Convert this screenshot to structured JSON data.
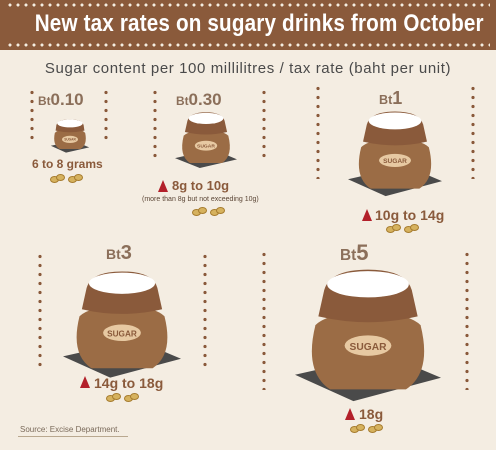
{
  "header": {
    "title": "New tax rates on sugary drinks from October"
  },
  "subtitle": "Sugar content per 100 millilitres / tax rate (baht per unit)",
  "colors": {
    "brown": "#8a5a3b",
    "sack": "#9b6c45",
    "sugar": "#ffffff",
    "warning": "#b3202a",
    "background": "#f4ede2"
  },
  "tiers": [
    {
      "currency": "Bt",
      "rate": "0.10",
      "range": "6 to 8 grams",
      "note": "",
      "bag_label": "SUGAR",
      "arrow_icon": ""
    },
    {
      "currency": "Bt",
      "rate": "0.30",
      "range": "8g to 10g",
      "note": "(more than 8g but not exceeding 10g)",
      "bag_label": "SUGAR",
      "arrow_icon": "up-triangle-icon"
    },
    {
      "currency": "Bt",
      "rate": "1",
      "range": "10g to 14g",
      "note": "",
      "bag_label": "SUGAR",
      "arrow_icon": "up-triangle-icon"
    },
    {
      "currency": "Bt",
      "rate": "3",
      "range": "14g to 18g",
      "note": "",
      "bag_label": "SUGAR",
      "arrow_icon": "up-triangle-icon"
    },
    {
      "currency": "Bt",
      "rate": "5",
      "range": "18g",
      "note": "",
      "bag_label": "SUGAR",
      "arrow_icon": "up-triangle-icon"
    }
  ],
  "source": "Source: Excise Department."
}
